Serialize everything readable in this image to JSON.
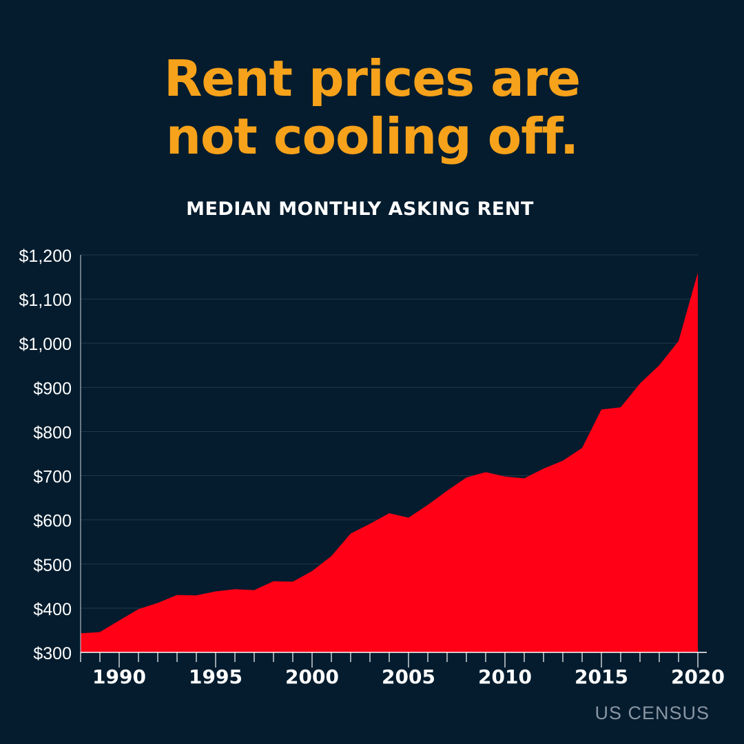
{
  "header": {
    "title_line1": "Rent prices are",
    "title_line2": "not cooling off."
  },
  "footer": {
    "source": "US CENSUS"
  },
  "colors": {
    "background": "#041c2e",
    "title": "#f7a21b",
    "area": "#ff0016",
    "grid": "#23384a",
    "axis_text": "#ffffff"
  },
  "chart_data": {
    "type": "area",
    "title": "MEDIAN MONTHLY ASKING RENT",
    "xlabel": "",
    "ylabel": "",
    "xlim": [
      1988,
      2020
    ],
    "ylim": [
      300,
      1200
    ],
    "x_ticks": [
      1990,
      1995,
      2000,
      2005,
      2010,
      2015,
      2020
    ],
    "y_ticks": [
      300,
      400,
      500,
      600,
      700,
      800,
      900,
      1000,
      1100,
      1200
    ],
    "y_tick_labels": [
      "$300",
      "$400",
      "$500",
      "$600",
      "$700",
      "$800",
      "$900",
      "$1,000",
      "$1,100",
      "$1,200"
    ],
    "grid": "horizontal",
    "x": [
      1988,
      1989,
      1990,
      1991,
      1992,
      1993,
      1994,
      1995,
      1996,
      1997,
      1998,
      1999,
      2000,
      2001,
      2002,
      2003,
      2004,
      2005,
      2006,
      2007,
      2008,
      2009,
      2010,
      2011,
      2012,
      2013,
      2014,
      2015,
      2016,
      2017,
      2018,
      2019,
      2020
    ],
    "values": [
      343,
      346,
      372,
      398,
      412,
      430,
      429,
      438,
      443,
      441,
      461,
      460,
      484,
      518,
      569,
      591,
      615,
      605,
      634,
      666,
      696,
      708,
      698,
      694,
      716,
      734,
      763,
      850,
      855,
      909,
      950,
      1005,
      1160
    ]
  }
}
